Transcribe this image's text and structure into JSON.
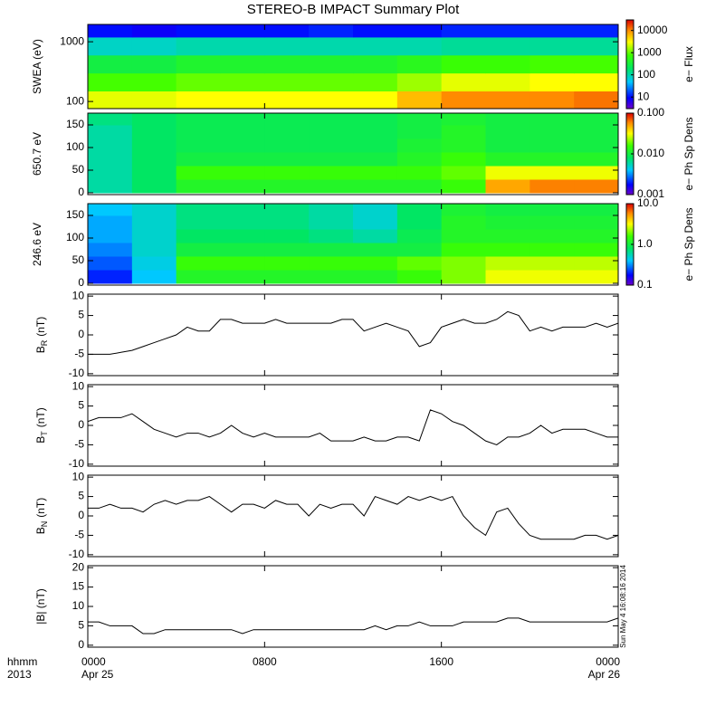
{
  "chart_data": [
    {
      "type": "heatmap",
      "title": "STEREO-B IMPACT Summary Plot",
      "ylabel": "SWEA (eV)",
      "ylog": true,
      "ylim": [
        76,
        1950
      ],
      "yticks": [
        100,
        1000
      ],
      "xlim": [
        0,
        24
      ],
      "x_edges": [
        0,
        2,
        4,
        6,
        8,
        10,
        12,
        14,
        16,
        18,
        20,
        22,
        24
      ],
      "y_edges": [
        76,
        150,
        300,
        600,
        1200,
        1950
      ],
      "z": [
        [
          2500,
          2500,
          3000,
          3000,
          3000,
          3000,
          3000,
          6000,
          10000,
          10000,
          10000,
          12000
        ],
        [
          800,
          800,
          1000,
          1000,
          1000,
          1000,
          1000,
          1500,
          2500,
          2500,
          3000,
          3000
        ],
        [
          300,
          300,
          400,
          400,
          400,
          400,
          400,
          500,
          700,
          700,
          800,
          800
        ],
        [
          80,
          80,
          100,
          100,
          100,
          100,
          100,
          100,
          120,
          120,
          120,
          120
        ],
        [
          10,
          8,
          10,
          10,
          10,
          12,
          10,
          10,
          12,
          12,
          12,
          12
        ]
      ],
      "clim": [
        3,
        30000
      ],
      "clog": true,
      "cticks": [
        10,
        100,
        1000,
        10000
      ],
      "clabel": "e− Flux"
    },
    {
      "type": "heatmap",
      "ylabel": "650.7 eV",
      "ylim": [
        -4,
        176
      ],
      "yticks": [
        0,
        50,
        100,
        150
      ],
      "xlim": [
        0,
        24
      ],
      "x_edges": [
        0,
        2,
        4,
        6,
        8,
        10,
        12,
        14,
        16,
        18,
        20,
        22,
        24
      ],
      "y_edges": [
        0,
        30,
        60,
        90,
        120,
        150,
        180
      ],
      "z": [
        [
          0.006,
          0.008,
          0.012,
          0.012,
          0.012,
          0.012,
          0.012,
          0.012,
          0.015,
          0.05,
          0.06,
          0.06
        ],
        [
          0.006,
          0.008,
          0.015,
          0.015,
          0.015,
          0.015,
          0.015,
          0.015,
          0.018,
          0.03,
          0.03,
          0.03
        ],
        [
          0.006,
          0.008,
          0.01,
          0.01,
          0.01,
          0.01,
          0.01,
          0.012,
          0.015,
          0.012,
          0.012,
          0.012
        ],
        [
          0.006,
          0.008,
          0.009,
          0.009,
          0.009,
          0.009,
          0.009,
          0.011,
          0.012,
          0.01,
          0.01,
          0.01
        ],
        [
          0.006,
          0.008,
          0.009,
          0.009,
          0.009,
          0.009,
          0.009,
          0.01,
          0.012,
          0.01,
          0.01,
          0.01
        ],
        [
          0.007,
          0.008,
          0.009,
          0.009,
          0.009,
          0.009,
          0.009,
          0.01,
          0.011,
          0.01,
          0.01,
          0.01
        ]
      ],
      "clim": [
        0.001,
        0.1
      ],
      "clog": true,
      "cticks": [
        0.001,
        {
          "value": 0.01,
          "label": "0.010"
        },
        {
          "value": 0.1,
          "label": "0.100"
        }
      ],
      "clabel": "e− Ph Sp Dens"
    },
    {
      "type": "heatmap",
      "ylabel": "246.6 eV",
      "ylim": [
        -4,
        176
      ],
      "yticks": [
        0,
        50,
        100,
        150
      ],
      "xlim": [
        0,
        24
      ],
      "x_edges": [
        0,
        2,
        4,
        6,
        8,
        10,
        12,
        14,
        16,
        18,
        20,
        22,
        24
      ],
      "y_edges": [
        0,
        30,
        60,
        90,
        120,
        150,
        180
      ],
      "z": [
        [
          0.2,
          0.4,
          1.2,
          1.2,
          1.2,
          1.2,
          1.2,
          1.5,
          2,
          3,
          3,
          3
        ],
        [
          0.25,
          0.45,
          1.5,
          1.5,
          1.5,
          1.5,
          1.5,
          1.8,
          2,
          2.5,
          2.5,
          2.5
        ],
        [
          0.3,
          0.5,
          1,
          1,
          1,
          1,
          1,
          1,
          1.5,
          1.5,
          1.5,
          1.5
        ],
        [
          0.35,
          0.5,
          0.8,
          0.8,
          0.8,
          0.7,
          0.6,
          0.9,
          1.2,
          1.2,
          1.2,
          1.2
        ],
        [
          0.35,
          0.5,
          0.7,
          0.7,
          0.7,
          0.6,
          0.5,
          0.8,
          1.2,
          1.1,
          1.1,
          1.1
        ],
        [
          0.4,
          0.5,
          0.7,
          0.7,
          0.7,
          0.6,
          0.5,
          0.8,
          1.1,
          1.0,
          1.0,
          1.0
        ]
      ],
      "clim": [
        0.1,
        10
      ],
      "clog": true,
      "cticks": [
        0.1,
        {
          "value": 1,
          "label": "1.0"
        },
        {
          "value": 10,
          "label": "10.0"
        }
      ],
      "clabel": "e− Ph Sp Dens"
    },
    {
      "type": "line",
      "ylabel": "B",
      "ylabel_sub": "R",
      "ylabel_unit": "(nT)",
      "ylim": [
        -10.5,
        10.5
      ],
      "yticks": [
        -10,
        -5,
        0,
        5,
        10
      ],
      "xlim": [
        0,
        24
      ],
      "color": "#000000",
      "x": [
        0,
        0.5,
        1,
        1.5,
        2,
        2.5,
        3,
        3.5,
        4,
        4.5,
        5,
        5.5,
        6,
        6.5,
        7,
        7.5,
        8,
        8.5,
        9,
        9.5,
        10,
        10.5,
        11,
        11.5,
        12,
        12.5,
        13,
        13.5,
        14,
        14.5,
        15,
        15.5,
        16,
        16.5,
        17,
        17.5,
        18,
        18.5,
        19,
        19.5,
        20,
        20.5,
        21,
        21.5,
        22,
        22.5,
        23,
        23.5,
        24
      ],
      "values": [
        -5,
        -5,
        -5,
        -4.5,
        -4,
        -3,
        -2,
        -1,
        0,
        2,
        1,
        1,
        4,
        4,
        3,
        3,
        3,
        4,
        3,
        3,
        3,
        3,
        3,
        4,
        4,
        1,
        2,
        3,
        2,
        1,
        -3,
        -2,
        2,
        3,
        4,
        3,
        3,
        4,
        6,
        5,
        1,
        2,
        1,
        2,
        2,
        2,
        3,
        2,
        3
      ]
    },
    {
      "type": "line",
      "ylabel": "B",
      "ylabel_sub": "T",
      "ylabel_unit": "(nT)",
      "ylim": [
        -10.5,
        10.5
      ],
      "yticks": [
        -10,
        -5,
        0,
        5,
        10
      ],
      "xlim": [
        0,
        24
      ],
      "color": "#000000",
      "x": [
        0,
        0.5,
        1,
        1.5,
        2,
        2.5,
        3,
        3.5,
        4,
        4.5,
        5,
        5.5,
        6,
        6.5,
        7,
        7.5,
        8,
        8.5,
        9,
        9.5,
        10,
        10.5,
        11,
        11.5,
        12,
        12.5,
        13,
        13.5,
        14,
        14.5,
        15,
        15.5,
        16,
        16.5,
        17,
        17.5,
        18,
        18.5,
        19,
        19.5,
        20,
        20.5,
        21,
        21.5,
        22,
        22.5,
        23,
        23.5,
        24
      ],
      "values": [
        1,
        2,
        2,
        2,
        3,
        1,
        -1,
        -2,
        -3,
        -2,
        -2,
        -3,
        -2,
        0,
        -2,
        -3,
        -2,
        -3,
        -3,
        -3,
        -3,
        -2,
        -4,
        -4,
        -4,
        -3,
        -4,
        -4,
        -3,
        -3,
        -4,
        4,
        3,
        1,
        0,
        -2,
        -4,
        -5,
        -3,
        -3,
        -2,
        0,
        -2,
        -1,
        -1,
        -1,
        -2,
        -3,
        -3
      ]
    },
    {
      "type": "line",
      "ylabel": "B",
      "ylabel_sub": "N",
      "ylabel_unit": "(nT)",
      "ylim": [
        -10.5,
        10.5
      ],
      "yticks": [
        -10,
        -5,
        0,
        5,
        10
      ],
      "xlim": [
        0,
        24
      ],
      "color": "#000000",
      "x": [
        0,
        0.5,
        1,
        1.5,
        2,
        2.5,
        3,
        3.5,
        4,
        4.5,
        5,
        5.5,
        6,
        6.5,
        7,
        7.5,
        8,
        8.5,
        9,
        9.5,
        10,
        10.5,
        11,
        11.5,
        12,
        12.5,
        13,
        13.5,
        14,
        14.5,
        15,
        15.5,
        16,
        16.5,
        17,
        17.5,
        18,
        18.5,
        19,
        19.5,
        20,
        20.5,
        21,
        21.5,
        22,
        22.5,
        23,
        23.5,
        24
      ],
      "values": [
        2,
        2,
        3,
        2,
        2,
        1,
        3,
        4,
        3,
        4,
        4,
        5,
        3,
        1,
        3,
        3,
        2,
        4,
        3,
        3,
        0,
        3,
        2,
        3,
        3,
        0,
        5,
        4,
        3,
        5,
        4,
        5,
        4,
        5,
        0,
        -3,
        -5,
        1,
        2,
        -2,
        -5,
        -6,
        -6,
        -6,
        -6,
        -5,
        -5,
        -6,
        -5
      ]
    },
    {
      "type": "line",
      "ylabel": "|B| (nT)",
      "ylim": [
        -0.5,
        20.5
      ],
      "yticks": [
        0,
        5,
        10,
        15,
        20
      ],
      "xlim": [
        0,
        24
      ],
      "color": "#000000",
      "x": [
        0,
        0.5,
        1,
        1.5,
        2,
        2.5,
        3,
        3.5,
        4,
        4.5,
        5,
        5.5,
        6,
        6.5,
        7,
        7.5,
        8,
        8.5,
        9,
        9.5,
        10,
        10.5,
        11,
        11.5,
        12,
        12.5,
        13,
        13.5,
        14,
        14.5,
        15,
        15.5,
        16,
        16.5,
        17,
        17.5,
        18,
        18.5,
        19,
        19.5,
        20,
        20.5,
        21,
        21.5,
        22,
        22.5,
        23,
        23.5,
        24
      ],
      "values": [
        6,
        6,
        5,
        5,
        5,
        3,
        3,
        4,
        4,
        4,
        4,
        4,
        4,
        4,
        3,
        4,
        4,
        4,
        4,
        4,
        4,
        4,
        4,
        4,
        4,
        4,
        5,
        4,
        5,
        5,
        6,
        5,
        5,
        5,
        6,
        6,
        6,
        6,
        7,
        7,
        6,
        6,
        6,
        6,
        6,
        6,
        6,
        6,
        7
      ],
      "xticks": [
        {
          "value": 0,
          "label": "0000"
        },
        {
          "value": 8,
          "label": "0800"
        },
        {
          "value": 16,
          "label": "1600"
        },
        {
          "value": 24,
          "label": "0000"
        }
      ],
      "xtick_dates": [
        {
          "value": 0,
          "label": "Apr 25"
        },
        {
          "value": 24,
          "label": "Apr 26"
        }
      ],
      "xlabel": "hhmm",
      "xlabel2": "2013",
      "annotation": "Sun May  4 16:08:16 2014"
    }
  ]
}
